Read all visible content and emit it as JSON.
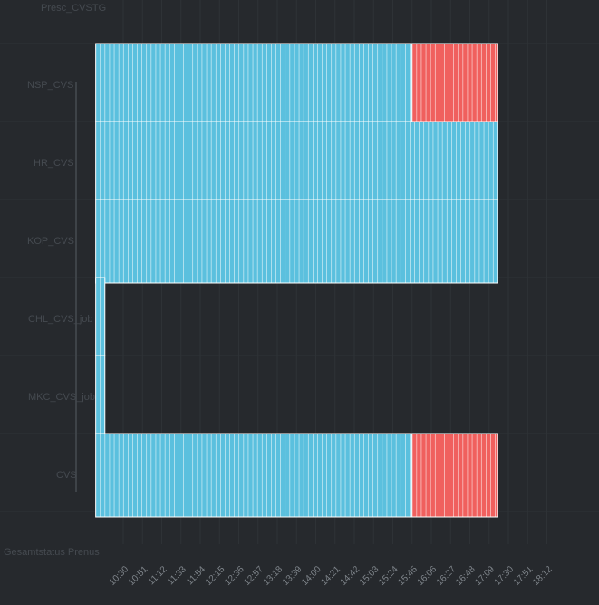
{
  "chart_data": {
    "type": "heatmap",
    "title": "Presc_CVSTG",
    "xlabel": "Gesamtstatus Prenus",
    "x_ticks": [
      "10:30",
      "10:51",
      "11:12",
      "11:33",
      "11:54",
      "12:15",
      "12:36",
      "12:57",
      "13:18",
      "13:39",
      "14:00",
      "14:21",
      "14:42",
      "15:03",
      "15:24",
      "15:45",
      "16:06",
      "16:27",
      "16:48",
      "17:09",
      "17:30",
      "17:51",
      "18:12"
    ],
    "rows": [
      {
        "label": "NSP_CVS",
        "segments": [
          {
            "start": "10:00",
            "end": "15:45",
            "status": "ok"
          },
          {
            "start": "15:45",
            "end": "17:18",
            "status": "error"
          }
        ]
      },
      {
        "label": "HR_CVS",
        "segments": [
          {
            "start": "10:00",
            "end": "17:18",
            "status": "ok"
          }
        ]
      },
      {
        "label": "KOP_CVS",
        "segments": [
          {
            "start": "10:00",
            "end": "17:18",
            "status": "ok"
          }
        ]
      },
      {
        "label": "CHL_CVS_job",
        "segments": [
          {
            "start": "10:00",
            "end": "10:10",
            "status": "ok"
          }
        ]
      },
      {
        "label": "MKC_CVS_job",
        "segments": [
          {
            "start": "10:00",
            "end": "10:10",
            "status": "ok"
          }
        ]
      },
      {
        "label": "CVS",
        "segments": [
          {
            "start": "10:00",
            "end": "15:45",
            "status": "ok"
          },
          {
            "start": "15:45",
            "end": "17:18",
            "status": "error"
          }
        ]
      }
    ],
    "colors": {
      "ok": "#5bc0de",
      "error": "#f0605e",
      "background": "#26292d",
      "grid": "#2e3236",
      "stripe": "#ffffff"
    },
    "grid": true,
    "legend": "none"
  }
}
